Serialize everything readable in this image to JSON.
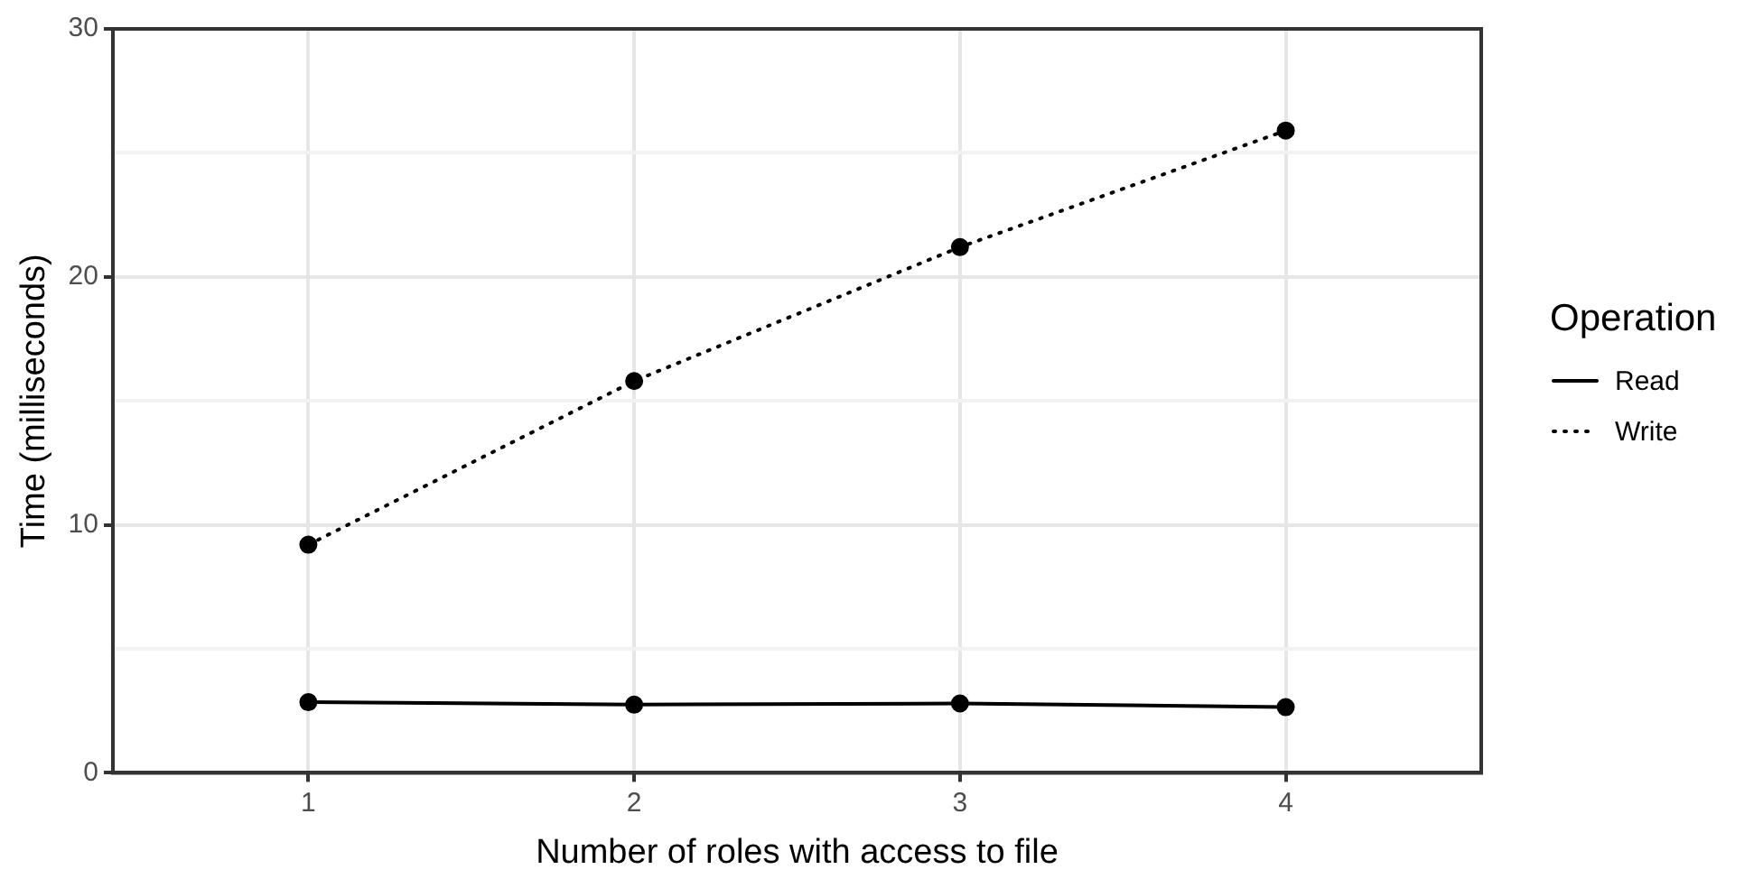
{
  "chart_data": {
    "type": "line",
    "xlabel": "Number of roles with access to file",
    "ylabel": "Time (milliseconds)",
    "legend_title": "Operation",
    "x": [
      1,
      2,
      3,
      4
    ],
    "series": [
      {
        "name": "Read",
        "color": "#000000",
        "values": [
          2.85,
          2.75,
          2.8,
          2.65
        ],
        "line_style": "solid"
      },
      {
        "name": "Write",
        "color": "#000000",
        "values": [
          9.2,
          15.8,
          21.2,
          25.9
        ],
        "line_style": "dotted"
      }
    ],
    "xlim": [
      0.4,
      4.6
    ],
    "xticks": [
      1,
      2,
      3,
      4
    ],
    "ylim": [
      0,
      30
    ],
    "yticks": [
      0,
      {
        "value": 5,
        "label": null
      },
      10,
      {
        "value": 15,
        "label": null
      },
      20,
      {
        "value": 25,
        "label": null
      },
      30
    ],
    "grid": true,
    "legend": "right",
    "marker": "circle"
  }
}
